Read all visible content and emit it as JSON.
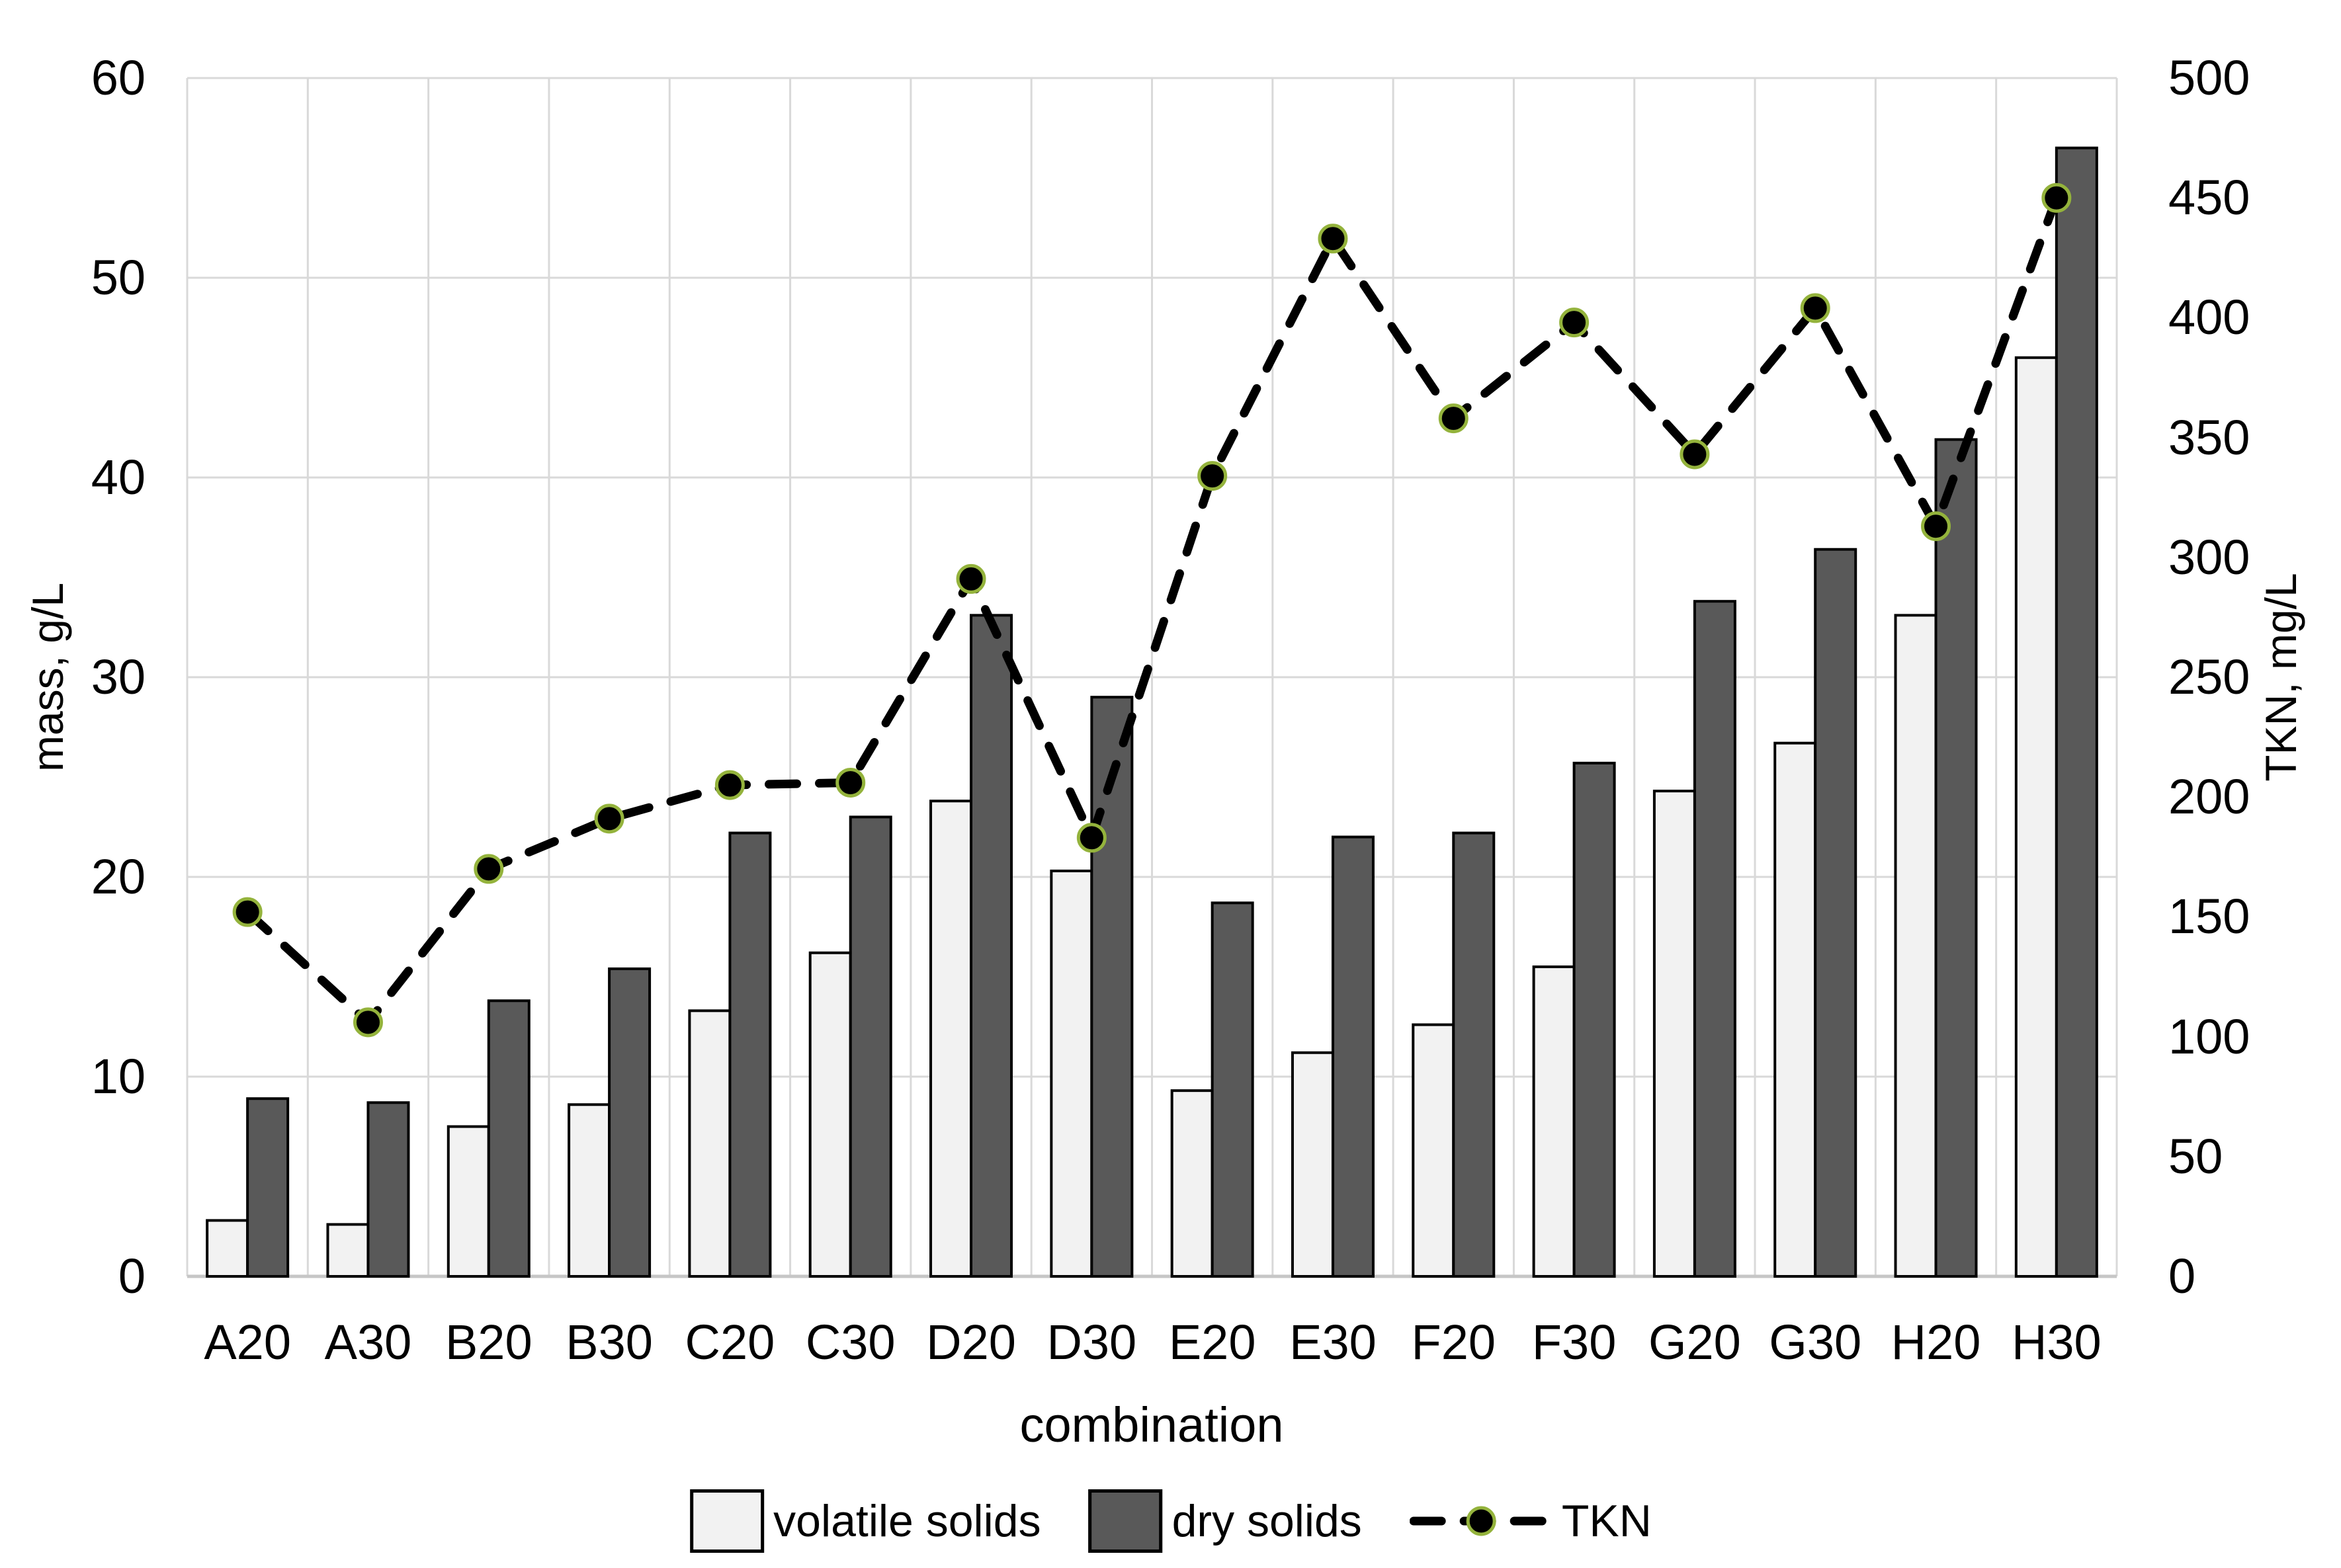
{
  "chart_data": {
    "type": "combo-bar-line",
    "categories": [
      "A20",
      "A30",
      "B20",
      "B30",
      "C20",
      "C30",
      "D20",
      "D30",
      "E20",
      "E30",
      "F20",
      "F30",
      "G20",
      "G30",
      "H20",
      "H30"
    ],
    "series": [
      {
        "name": "volatile solids",
        "type": "bar",
        "axis": "left",
        "fill": "#f2f2f2",
        "stroke": "#000000",
        "values": [
          2.8,
          2.6,
          7.5,
          8.6,
          13.3,
          16.2,
          23.8,
          20.3,
          9.3,
          11.2,
          12.6,
          15.5,
          24.3,
          26.7,
          33.1,
          46.0
        ]
      },
      {
        "name": "dry solids",
        "type": "bar",
        "axis": "left",
        "fill": "#595959",
        "stroke": "#000000",
        "values": [
          8.9,
          8.7,
          13.8,
          15.4,
          22.2,
          23.0,
          33.1,
          29.0,
          18.7,
          22.0,
          22.2,
          25.7,
          33.8,
          36.4,
          41.9,
          56.5
        ]
      },
      {
        "name": "TKN",
        "type": "line",
        "axis": "right",
        "color": "#000000",
        "dashed": true,
        "marker_fill": "#000000",
        "marker_outline": "#94b33c",
        "values": [
          152,
          106,
          170,
          191,
          205,
          206,
          291,
          183,
          334,
          433,
          358,
          398,
          343,
          404,
          313,
          450
        ]
      }
    ],
    "left_axis": {
      "title": "mass, g/L",
      "min": 0,
      "max": 60,
      "step": 10
    },
    "right_axis": {
      "title": "TKN, mg/L",
      "min": 0,
      "max": 500,
      "step": 50
    },
    "x_axis": {
      "title": "combination"
    },
    "legend_position": "bottom",
    "grid": true,
    "gridline_color": "#d9d9d9",
    "baseline_color": "#c6c6c6",
    "background": "#ffffff"
  }
}
